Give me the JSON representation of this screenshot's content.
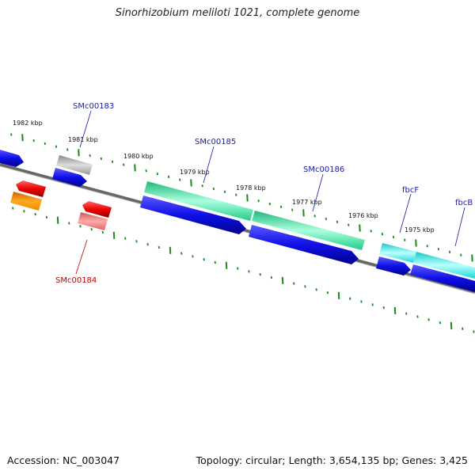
{
  "title": "Sinorhizobium meliloti 1021, complete genome",
  "footer": {
    "accession": "Accession: NC_003047",
    "summary": "Topology: circular; Length: 3,654,135 bp; Genes: 3,425"
  },
  "scale": {
    "unit": "kbp",
    "ticks": [
      "1982 kbp",
      "1981 kbp",
      "1980 kbp",
      "1979 kbp",
      "1978 kbp",
      "1977 kbp",
      "1976 kbp",
      "1975 kbp"
    ]
  },
  "gene_labels": [
    {
      "name": "SMc00183",
      "color": "#1a1aa8"
    },
    {
      "name": "SMc00184",
      "color": "#c00000"
    },
    {
      "name": "SMc00185",
      "color": "#1a1aa8"
    },
    {
      "name": "SMc00186",
      "color": "#1a1aa8"
    },
    {
      "name": "fbcF",
      "color": "#1a1aa8"
    },
    {
      "name": "fbcB",
      "color": "#1a1aa8"
    }
  ],
  "colors": {
    "backbone": "#777777",
    "tick": "#1a8a1a",
    "cds_blue": "#0a0ae0",
    "gene_green": "#33dd99",
    "gene_cyan": "#22dddd",
    "gene_red": "#ee1111",
    "gene_orange": "#ff9900",
    "gene_gray": "#aaaaaa",
    "gene_pink": "#ee7777"
  }
}
